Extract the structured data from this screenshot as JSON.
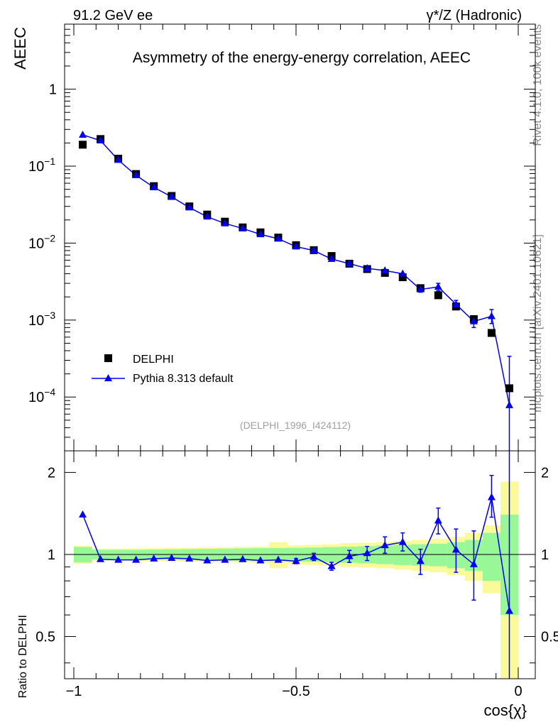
{
  "header": {
    "left": "91.2 GeV ee",
    "right": "γ*/Z (Hadronic)"
  },
  "side_text": {
    "rivet": "Rivet 4.1.0,  100k events",
    "site": "mcplots.cern.ch [arXiv:2401.10621]"
  },
  "colors": {
    "mc": "#0000ee",
    "data": "#000000",
    "band_inner": "#98f898",
    "band_outer": "#fafa9a"
  },
  "chart_data": [
    {
      "type": "scatter",
      "title": "Asymmetry of the energy-energy correlation, AEEC",
      "ylabel": "AEEC",
      "xlabel": "",
      "xlim": [
        -1.0,
        0.0
      ],
      "ylim": [
        2e-05,
        7.0
      ],
      "yscale": "log",
      "yticks": [
        {
          "value": 1.0,
          "label": "1"
        },
        {
          "value": 0.1,
          "label": "10",
          "exp": "−1"
        },
        {
          "value": 0.01,
          "label": "10",
          "exp": "−2"
        },
        {
          "value": 0.001,
          "label": "10",
          "exp": "−3"
        },
        {
          "value": 0.0001,
          "label": "10",
          "exp": "−4"
        }
      ],
      "analysis_id": "(DELPHI_1996_I424112)",
      "legend": {
        "position": "lower-left",
        "entries": [
          {
            "label": "DELPHI",
            "marker": "square"
          },
          {
            "label": "Pythia 8.313 default",
            "marker": "triangle"
          }
        ]
      },
      "x": [
        -0.98,
        -0.94,
        -0.9,
        -0.86,
        -0.82,
        -0.78,
        -0.74,
        -0.7,
        -0.66,
        -0.62,
        -0.58,
        -0.54,
        -0.5,
        -0.46,
        -0.42,
        -0.38,
        -0.34,
        -0.3,
        -0.26,
        -0.22,
        -0.18,
        -0.14,
        -0.1,
        -0.06,
        -0.02
      ],
      "series": [
        {
          "name": "DELPHI",
          "values": [
            0.19,
            0.225,
            0.125,
            0.079,
            0.055,
            0.041,
            0.03,
            0.0235,
            0.019,
            0.016,
            0.0138,
            0.0118,
            0.0094,
            0.0081,
            0.0068,
            0.0054,
            0.0046,
            0.0041,
            0.0036,
            0.0026,
            0.0021,
            0.0015,
            0.00103,
            0.00068,
            0.00013
          ]
        },
        {
          "name": "Pythia 8.313 default",
          "values": [
            0.255,
            0.215,
            0.12,
            0.076,
            0.053,
            0.04,
            0.029,
            0.022,
            0.018,
            0.0155,
            0.013,
            0.0114,
            0.009,
            0.008,
            0.0062,
            0.0054,
            0.0047,
            0.0044,
            0.004,
            0.0025,
            0.0027,
            0.0016,
            0.00096,
            0.00112,
            7.8e-05
          ],
          "err_up": [
            0,
            0,
            0,
            0,
            0,
            0,
            0,
            0,
            0,
            0,
            0,
            0,
            0,
            0,
            0,
            0,
            0,
            0,
            0,
            0.0002,
            0.0003,
            0.0002,
            0.00017,
            0.00025,
            0.00026
          ],
          "err_down": [
            0,
            0,
            0,
            0,
            0,
            0,
            0,
            0,
            0,
            0,
            0,
            0,
            0,
            0,
            0,
            0,
            0,
            0,
            0,
            0.0002,
            0.0003,
            0.0002,
            0.00016,
            0.00022,
            7.5e-05
          ]
        }
      ]
    },
    {
      "type": "line",
      "title": "",
      "ylabel": "Ratio to DELPHI",
      "xlabel": "cos{χ}",
      "xlim": [
        -1.0,
        0.0
      ],
      "ylim": [
        0.35,
        2.4
      ],
      "yscale": "log",
      "yticks": [
        {
          "value": 0.5,
          "label": "0.5"
        },
        {
          "value": 1.0,
          "label": "1"
        },
        {
          "value": 2.0,
          "label": "2"
        }
      ],
      "xticks": [
        {
          "value": -1.0,
          "label": "−1"
        },
        {
          "value": -0.5,
          "label": "−0.5"
        },
        {
          "value": 0.0,
          "label": "0"
        }
      ],
      "x": [
        -0.98,
        -0.94,
        -0.9,
        -0.86,
        -0.82,
        -0.78,
        -0.74,
        -0.7,
        -0.66,
        -0.62,
        -0.58,
        -0.54,
        -0.5,
        -0.46,
        -0.42,
        -0.38,
        -0.34,
        -0.3,
        -0.26,
        -0.22,
        -0.18,
        -0.14,
        -0.1,
        -0.06,
        -0.02
      ],
      "band_inner": [
        0.065,
        0.04,
        0.04,
        0.04,
        0.042,
        0.044,
        0.046,
        0.048,
        0.05,
        0.052,
        0.054,
        0.056,
        0.058,
        0.06,
        0.064,
        0.068,
        0.072,
        0.078,
        0.085,
        0.09,
        0.095,
        0.11,
        0.13,
        0.2,
        0.4
      ],
      "band_outer": [
        0.075,
        0.05,
        0.05,
        0.052,
        0.054,
        0.056,
        0.058,
        0.06,
        0.062,
        0.066,
        0.07,
        0.11,
        0.08,
        0.085,
        0.09,
        0.1,
        0.105,
        0.11,
        0.12,
        0.13,
        0.14,
        0.16,
        0.2,
        0.28,
        0.85
      ],
      "series": [
        {
          "name": "Pythia 8.313 default / DELPHI",
          "values": [
            1.4,
            0.96,
            0.955,
            0.955,
            0.965,
            0.97,
            0.965,
            0.95,
            0.955,
            0.96,
            0.95,
            0.955,
            0.945,
            0.98,
            0.905,
            0.985,
            1.01,
            1.08,
            1.11,
            0.945,
            1.33,
            1.04,
            0.92,
            1.62,
            0.62
          ],
          "err_up": [
            0,
            0,
            0,
            0,
            0,
            0,
            0,
            0,
            0,
            0,
            0,
            0,
            0.02,
            0.03,
            0.03,
            0.05,
            0.06,
            0.08,
            0.09,
            0.1,
            0.15,
            0.2,
            0.3,
            0.33,
            2.2
          ],
          "err_down": [
            0,
            0,
            0,
            0,
            0,
            0,
            0,
            0,
            0,
            0,
            0,
            0,
            0.02,
            0.03,
            0.03,
            0.05,
            0.06,
            0.07,
            0.08,
            0.1,
            0.14,
            0.18,
            0.24,
            0.25,
            0.3
          ]
        }
      ]
    }
  ]
}
